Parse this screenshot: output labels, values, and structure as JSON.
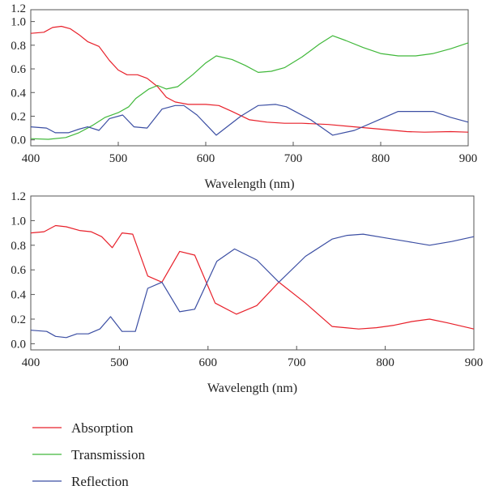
{
  "chart_data": [
    {
      "type": "line",
      "xlabel": "Wavelength (nm)",
      "ylabel": "",
      "xlim": [
        400,
        900
      ],
      "ylim": [
        -0.05,
        1.1
      ],
      "xticks": [
        400,
        500,
        600,
        700,
        800,
        900
      ],
      "xtick_labels": [
        "400",
        "500",
        "600",
        "700",
        "800",
        "900"
      ],
      "yticks": [
        0.0,
        0.2,
        0.4,
        0.6,
        0.8,
        1.0
      ],
      "ytick_labels": [
        "0.0",
        "0.2",
        "0.4",
        "0.6",
        "0.8",
        "1.0"
      ],
      "ytick_top_label": "1.2",
      "grid": false,
      "series": [
        {
          "name": "Absorption",
          "color": "#e8202a",
          "points": [
            [
              400,
              0.9
            ],
            [
              415,
              0.91
            ],
            [
              425,
              0.95
            ],
            [
              435,
              0.96
            ],
            [
              445,
              0.94
            ],
            [
              455,
              0.89
            ],
            [
              465,
              0.83
            ],
            [
              478,
              0.79
            ],
            [
              490,
              0.67
            ],
            [
              500,
              0.59
            ],
            [
              510,
              0.55
            ],
            [
              522,
              0.55
            ],
            [
              533,
              0.52
            ],
            [
              545,
              0.45
            ],
            [
              555,
              0.36
            ],
            [
              565,
              0.32
            ],
            [
              580,
              0.3
            ],
            [
              600,
              0.3
            ],
            [
              615,
              0.29
            ],
            [
              630,
              0.24
            ],
            [
              650,
              0.17
            ],
            [
              670,
              0.15
            ],
            [
              690,
              0.14
            ],
            [
              710,
              0.14
            ],
            [
              740,
              0.13
            ],
            [
              770,
              0.11
            ],
            [
              800,
              0.09
            ],
            [
              830,
              0.07
            ],
            [
              850,
              0.065
            ],
            [
              880,
              0.07
            ],
            [
              900,
              0.065
            ]
          ]
        },
        {
          "name": "Transmission",
          "color": "#40b83a",
          "points": [
            [
              400,
              0.01
            ],
            [
              420,
              0.005
            ],
            [
              440,
              0.02
            ],
            [
              455,
              0.06
            ],
            [
              470,
              0.12
            ],
            [
              485,
              0.19
            ],
            [
              500,
              0.23
            ],
            [
              512,
              0.28
            ],
            [
              520,
              0.35
            ],
            [
              535,
              0.43
            ],
            [
              545,
              0.46
            ],
            [
              555,
              0.43
            ],
            [
              568,
              0.45
            ],
            [
              585,
              0.55
            ],
            [
              600,
              0.65
            ],
            [
              612,
              0.71
            ],
            [
              630,
              0.68
            ],
            [
              645,
              0.63
            ],
            [
              660,
              0.57
            ],
            [
              675,
              0.58
            ],
            [
              690,
              0.61
            ],
            [
              710,
              0.7
            ],
            [
              730,
              0.81
            ],
            [
              745,
              0.88
            ],
            [
              760,
              0.84
            ],
            [
              780,
              0.78
            ],
            [
              800,
              0.73
            ],
            [
              820,
              0.71
            ],
            [
              840,
              0.71
            ],
            [
              860,
              0.73
            ],
            [
              880,
              0.77
            ],
            [
              900,
              0.82
            ]
          ]
        },
        {
          "name": "Reflection",
          "color": "#3b4ea3",
          "points": [
            [
              400,
              0.11
            ],
            [
              418,
              0.1
            ],
            [
              428,
              0.06
            ],
            [
              443,
              0.06
            ],
            [
              455,
              0.09
            ],
            [
              465,
              0.11
            ],
            [
              478,
              0.08
            ],
            [
              490,
              0.18
            ],
            [
              505,
              0.21
            ],
            [
              518,
              0.11
            ],
            [
              533,
              0.1
            ],
            [
              550,
              0.26
            ],
            [
              565,
              0.29
            ],
            [
              575,
              0.29
            ],
            [
              590,
              0.21
            ],
            [
              612,
              0.04
            ],
            [
              640,
              0.2
            ],
            [
              660,
              0.29
            ],
            [
              680,
              0.3
            ],
            [
              692,
              0.28
            ],
            [
              720,
              0.17
            ],
            [
              745,
              0.04
            ],
            [
              770,
              0.08
            ],
            [
              795,
              0.16
            ],
            [
              820,
              0.24
            ],
            [
              840,
              0.24
            ],
            [
              860,
              0.24
            ],
            [
              880,
              0.19
            ],
            [
              900,
              0.15
            ]
          ]
        }
      ]
    },
    {
      "type": "line",
      "xlabel": "Wavelength (nm)",
      "ylabel": "",
      "xlim": [
        400,
        900
      ],
      "ylim": [
        -0.05,
        1.2
      ],
      "xticks": [
        400,
        500,
        600,
        700,
        800,
        900
      ],
      "xtick_labels": [
        "400",
        "500",
        "600",
        "700",
        "800",
        "900"
      ],
      "yticks": [
        0.0,
        0.2,
        0.4,
        0.6,
        0.8,
        1.0,
        1.2
      ],
      "ytick_labels": [
        "0.0",
        "0.2",
        "0.4",
        "0.6",
        "0.8",
        "1.0",
        "1.2"
      ],
      "grid": false,
      "series": [
        {
          "name": "Absorption",
          "color": "#e8202a",
          "points": [
            [
              400,
              0.9
            ],
            [
              415,
              0.91
            ],
            [
              428,
              0.96
            ],
            [
              440,
              0.95
            ],
            [
              455,
              0.92
            ],
            [
              468,
              0.91
            ],
            [
              480,
              0.87
            ],
            [
              492,
              0.78
            ],
            [
              503,
              0.9
            ],
            [
              515,
              0.89
            ],
            [
              532,
              0.55
            ],
            [
              548,
              0.5
            ],
            [
              568,
              0.75
            ],
            [
              585,
              0.72
            ],
            [
              608,
              0.33
            ],
            [
              632,
              0.24
            ],
            [
              655,
              0.31
            ],
            [
              680,
              0.5
            ],
            [
              710,
              0.33
            ],
            [
              740,
              0.14
            ],
            [
              755,
              0.13
            ],
            [
              770,
              0.12
            ],
            [
              790,
              0.13
            ],
            [
              810,
              0.15
            ],
            [
              830,
              0.18
            ],
            [
              850,
              0.2
            ],
            [
              870,
              0.17
            ],
            [
              900,
              0.12
            ]
          ]
        },
        {
          "name": "Reflection",
          "color": "#3b4ea3",
          "points": [
            [
              400,
              0.11
            ],
            [
              418,
              0.1
            ],
            [
              428,
              0.06
            ],
            [
              440,
              0.05
            ],
            [
              452,
              0.08
            ],
            [
              465,
              0.08
            ],
            [
              478,
              0.12
            ],
            [
              490,
              0.22
            ],
            [
              503,
              0.1
            ],
            [
              518,
              0.1
            ],
            [
              532,
              0.45
            ],
            [
              548,
              0.5
            ],
            [
              568,
              0.26
            ],
            [
              585,
              0.28
            ],
            [
              610,
              0.67
            ],
            [
              630,
              0.77
            ],
            [
              655,
              0.68
            ],
            [
              680,
              0.5
            ],
            [
              710,
              0.71
            ],
            [
              740,
              0.85
            ],
            [
              757,
              0.88
            ],
            [
              775,
              0.89
            ],
            [
              800,
              0.86
            ],
            [
              825,
              0.83
            ],
            [
              850,
              0.8
            ],
            [
              875,
              0.83
            ],
            [
              900,
              0.87
            ]
          ]
        }
      ]
    }
  ],
  "legend": {
    "items": [
      {
        "label": "Absorption",
        "color": "#e8202a"
      },
      {
        "label": "Transmission",
        "color": "#40b83a"
      },
      {
        "label": "Reflection",
        "color": "#3b4ea3"
      }
    ]
  }
}
